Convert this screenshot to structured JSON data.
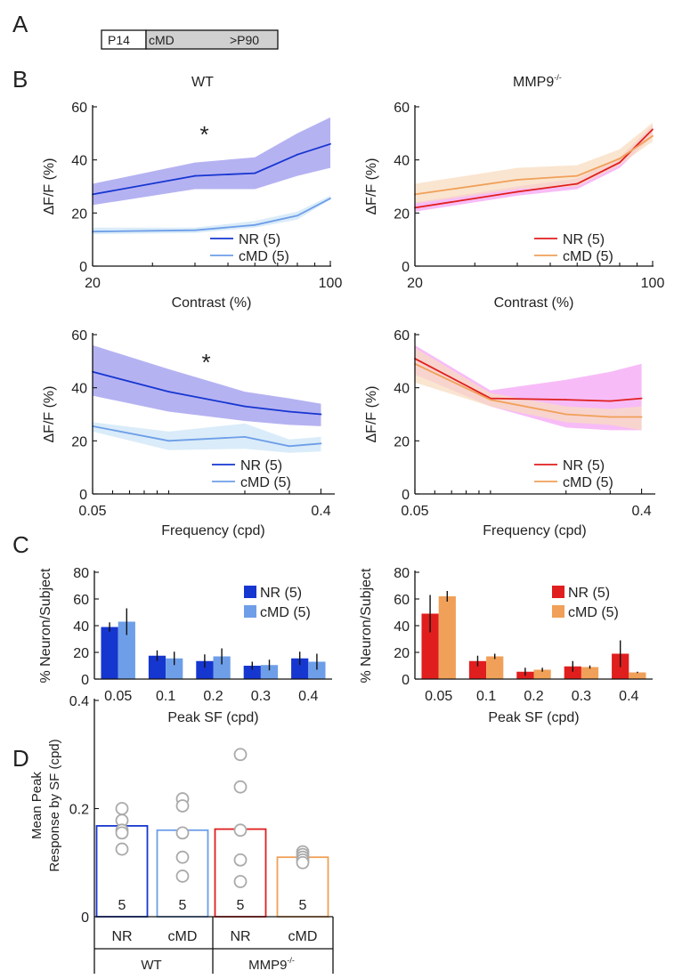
{
  "colors": {
    "wt_nr": "#1636d0",
    "wt_nr_band": "#9c98ee",
    "wt_cmd": "#6e9ee8",
    "wt_cmd_band": "#cde6f7",
    "ko_nr": "#e01e1e",
    "ko_nr_band": "#f4a6f4",
    "ko_cmd": "#f0a058",
    "ko_cmd_band": "#f8dcc0",
    "dot": "#aaaaaa"
  },
  "panel_a": {
    "label": "A",
    "timeline": [
      "P14",
      "cMD",
      ">P90"
    ]
  },
  "panel_b": {
    "label": "B",
    "titles": {
      "wt": "WT",
      "ko_base": "MMP9",
      "ko_sup": "-/-"
    },
    "ylabel": "ΔF/F (%)",
    "contrast_xlabel": "Contrast (%)",
    "frequency_xlabel": "Frequency (cpd)",
    "significance": "*"
  },
  "panel_c": {
    "label": "C"
  },
  "panel_d": {
    "label": "D"
  },
  "chart_data": [
    {
      "id": "wt_contrast",
      "type": "line",
      "scale_x": "log",
      "xlim": [
        20,
        100
      ],
      "ylim": [
        0,
        60
      ],
      "yticks": [
        0,
        20,
        40,
        60
      ],
      "xticks": [
        {
          "value": 20,
          "label": "20"
        },
        {
          "value": 100,
          "label": "100"
        }
      ],
      "minor_ticks": [
        30,
        40,
        50,
        60,
        70,
        80,
        90
      ],
      "x": [
        20,
        40,
        60,
        80,
        100
      ],
      "annotation": "*",
      "series": [
        {
          "name": "NR (5)",
          "color_key": "wt_nr",
          "band_key": "wt_nr_band",
          "values": [
            27,
            34,
            35,
            42,
            46
          ],
          "lower": [
            23,
            29,
            29,
            34,
            37
          ],
          "upper": [
            31,
            39,
            41,
            50,
            56
          ]
        },
        {
          "name": "cMD (5)",
          "color_key": "wt_cmd",
          "band_key": "wt_cmd_band",
          "values": [
            13,
            13.5,
            15.5,
            19,
            25.5
          ],
          "lower": [
            12,
            12.5,
            14.5,
            17.5,
            25
          ],
          "upper": [
            14.5,
            14.5,
            17,
            20.5,
            26.5
          ]
        }
      ]
    },
    {
      "id": "ko_contrast",
      "type": "line",
      "scale_x": "log",
      "xlim": [
        20,
        100
      ],
      "ylim": [
        0,
        60
      ],
      "yticks": [
        0,
        20,
        40,
        60
      ],
      "xticks": [
        {
          "value": 20,
          "label": "20"
        },
        {
          "value": 100,
          "label": "100"
        }
      ],
      "minor_ticks": [
        30,
        40,
        50,
        60,
        70,
        80,
        90
      ],
      "x": [
        20,
        40,
        60,
        80,
        100
      ],
      "series": [
        {
          "name": "NR (5)",
          "color_key": "ko_nr",
          "band_key": "ko_nr_band",
          "values": [
            22,
            28,
            31,
            39,
            51.5
          ],
          "lower": [
            20.5,
            26.5,
            29,
            37,
            49
          ],
          "upper": [
            24,
            30,
            33,
            41,
            53
          ]
        },
        {
          "name": "cMD (5)",
          "color_key": "ko_cmd",
          "band_key": "ko_cmd_band",
          "values": [
            27,
            32.5,
            34,
            40.5,
            49
          ],
          "lower": [
            23.5,
            29,
            30,
            38,
            47
          ],
          "upper": [
            31,
            37,
            38,
            44,
            54
          ]
        }
      ]
    },
    {
      "id": "wt_frequency",
      "type": "line",
      "scale_x": "log",
      "xlim": [
        0.05,
        0.45
      ],
      "ylim": [
        0,
        60
      ],
      "yticks": [
        0,
        20,
        40,
        60
      ],
      "xticks": [
        {
          "value": 0.05,
          "label": "0.05"
        },
        {
          "value": 0.4,
          "label": "0.4"
        }
      ],
      "minor_ticks": [
        0.06,
        0.07,
        0.08,
        0.09,
        0.1,
        0.2,
        0.3
      ],
      "x": [
        0.05,
        0.1,
        0.2,
        0.3,
        0.4
      ],
      "annotation": "*",
      "series": [
        {
          "name": "NR (5)",
          "color_key": "wt_nr",
          "band_key": "wt_nr_band",
          "values": [
            46,
            38.5,
            33,
            31,
            30
          ],
          "lower": [
            37,
            31,
            27.5,
            26,
            25.5
          ],
          "upper": [
            56,
            47,
            38.5,
            36,
            34
          ]
        },
        {
          "name": "cMD (5)",
          "color_key": "wt_cmd",
          "band_key": "wt_cmd_band",
          "values": [
            25.5,
            20,
            21.5,
            18,
            19
          ],
          "lower": [
            23.5,
            16.5,
            17,
            15.5,
            16
          ],
          "upper": [
            27,
            23.5,
            26.5,
            20.5,
            21.5
          ]
        }
      ]
    },
    {
      "id": "ko_frequency",
      "type": "line",
      "scale_x": "log",
      "xlim": [
        0.05,
        0.45
      ],
      "ylim": [
        0,
        60
      ],
      "yticks": [
        0,
        20,
        40,
        60
      ],
      "xticks": [
        {
          "value": 0.05,
          "label": "0.05"
        },
        {
          "value": 0.4,
          "label": "0.4"
        }
      ],
      "minor_ticks": [
        0.06,
        0.07,
        0.08,
        0.09,
        0.1,
        0.2,
        0.3
      ],
      "x": [
        0.05,
        0.1,
        0.2,
        0.3,
        0.4
      ],
      "series": [
        {
          "name": "NR (5)",
          "color_key": "ko_nr",
          "band_key": "ko_nr_band",
          "values": [
            51,
            36,
            35.5,
            35,
            36
          ],
          "lower": [
            45,
            33,
            25,
            24,
            24
          ],
          "upper": [
            56,
            39,
            43,
            46,
            49
          ]
        },
        {
          "name": "cMD (5)",
          "color_key": "ko_cmd",
          "band_key": "ko_cmd_band",
          "values": [
            49,
            35.5,
            30,
            29,
            29
          ],
          "lower": [
            42,
            33,
            27,
            26,
            24
          ],
          "upper": [
            55,
            38,
            33,
            32,
            33
          ]
        }
      ]
    },
    {
      "id": "wt_peak_sf",
      "type": "bar",
      "ylabel": "% Neuron/Subject",
      "xlabel": "Peak SF (cpd)",
      "ylim": [
        0,
        80
      ],
      "yticks": [
        0,
        20,
        40,
        60,
        80
      ],
      "categories": [
        "0.05",
        "0.1",
        "0.2",
        "0.3",
        "0.4"
      ],
      "series": [
        {
          "name": "NR (5)",
          "color_key": "wt_nr",
          "values": [
            39,
            17.5,
            13.5,
            10,
            15.5
          ],
          "errors": [
            3.5,
            4,
            5,
            3,
            5
          ]
        },
        {
          "name": "cMD (5)",
          "color_key": "wt_cmd",
          "values": [
            43,
            15.5,
            17,
            10.5,
            13
          ],
          "errors": [
            10,
            5,
            6,
            4,
            6
          ]
        }
      ]
    },
    {
      "id": "ko_peak_sf",
      "type": "bar",
      "ylabel": "% Neuron/Subject",
      "xlabel": "Peak SF (cpd)",
      "ylim": [
        0,
        80
      ],
      "yticks": [
        0,
        20,
        40,
        60,
        80
      ],
      "categories": [
        "0.05",
        "0.1",
        "0.2",
        "0.3",
        "0.4"
      ],
      "series": [
        {
          "name": "NR (5)",
          "color_key": "ko_nr",
          "values": [
            49,
            13.5,
            5.5,
            9.5,
            19
          ],
          "errors": [
            14,
            4,
            3,
            4,
            10
          ]
        },
        {
          "name": "cMD (5)",
          "color_key": "ko_cmd",
          "values": [
            62,
            17,
            7,
            9,
            5
          ],
          "errors": [
            4,
            2,
            1.5,
            1.2,
            0.5
          ]
        }
      ]
    },
    {
      "id": "mean_peak",
      "type": "bar",
      "ylabel_lines": [
        "Mean Peak",
        "Response by SF (cpd)"
      ],
      "ylim": [
        0,
        0.4
      ],
      "yticks": [
        0,
        0.2,
        0.4
      ],
      "categories": [
        "NR",
        "cMD",
        "NR",
        "cMD"
      ],
      "groups": [
        {
          "base": "WT",
          "sup": ""
        },
        {
          "base": "MMP9",
          "sup": "-/-"
        }
      ],
      "bars": [
        {
          "label": "NR",
          "color_key": "wt_nr",
          "value": 0.168,
          "n": "5",
          "points": [
            0.2,
            0.178,
            0.16,
            0.155,
            0.125
          ]
        },
        {
          "label": "cMD",
          "color_key": "wt_cmd",
          "value": 0.16,
          "n": "5",
          "points": [
            0.218,
            0.205,
            0.155,
            0.11,
            0.075
          ]
        },
        {
          "label": "NR",
          "color_key": "ko_nr",
          "value": 0.162,
          "n": "5",
          "points": [
            0.3,
            0.24,
            0.16,
            0.105,
            0.065
          ]
        },
        {
          "label": "cMD",
          "color_key": "ko_cmd",
          "value": 0.11,
          "n": "5",
          "points": [
            0.12,
            0.115,
            0.11,
            0.105,
            0.1
          ]
        }
      ]
    }
  ]
}
